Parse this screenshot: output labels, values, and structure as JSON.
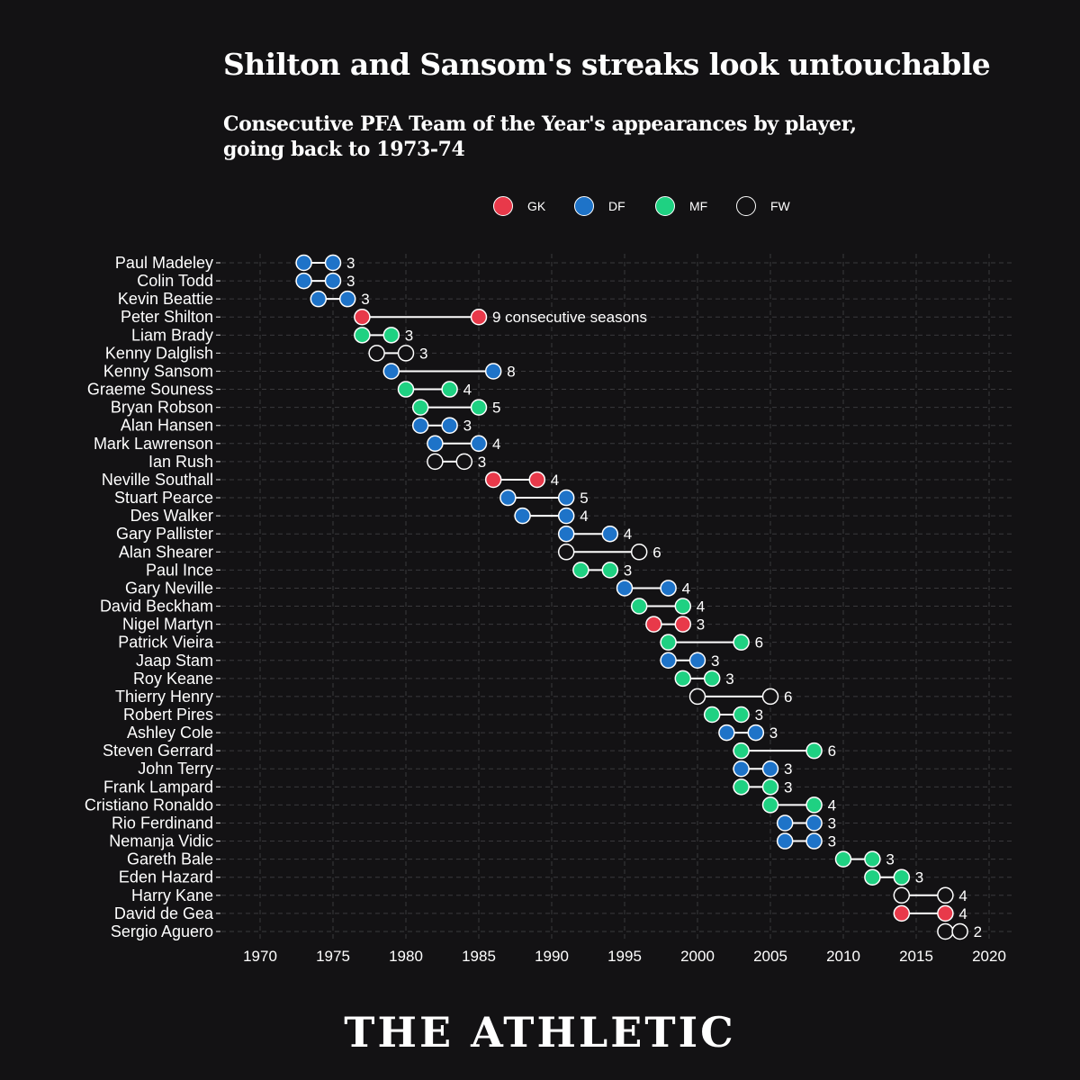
{
  "header": {
    "title": "Shilton and Sansom's streaks look untouchable",
    "subtitle": "Consecutive PFA Team of the Year's appearances by player, going back to 1973-74"
  },
  "legend": [
    {
      "label": "GK",
      "color": "#e8394a"
    },
    {
      "label": "DF",
      "color": "#1e73c8"
    },
    {
      "label": "MF",
      "color": "#1fd182"
    },
    {
      "label": "FW",
      "color": "#131214"
    }
  ],
  "footer": {
    "brand": "THE ATHLETIC"
  },
  "chart_data": {
    "type": "dumbbell",
    "xlim": [
      1968,
      2021
    ],
    "x_ticks": [
      1970,
      1975,
      1980,
      1985,
      1990,
      1995,
      2000,
      2005,
      2010,
      2015,
      2020
    ],
    "grid": true,
    "legend_position": "top",
    "position_colors": {
      "GK": "#e8394a",
      "DF": "#1e73c8",
      "MF": "#1fd182",
      "FW": "#131214"
    },
    "players": [
      {
        "name": "Paul Madeley",
        "start": 1973,
        "end": 1975,
        "position": "DF",
        "label": "3"
      },
      {
        "name": "Colin Todd",
        "start": 1973,
        "end": 1975,
        "position": "DF",
        "label": "3"
      },
      {
        "name": "Kevin Beattie",
        "start": 1974,
        "end": 1976,
        "position": "DF",
        "label": "3"
      },
      {
        "name": "Peter Shilton",
        "start": 1977,
        "end": 1985,
        "position": "GK",
        "label": "9 consecutive seasons"
      },
      {
        "name": "Liam Brady",
        "start": 1977,
        "end": 1979,
        "position": "MF",
        "label": "3"
      },
      {
        "name": "Kenny Dalglish",
        "start": 1978,
        "end": 1980,
        "position": "FW",
        "label": "3"
      },
      {
        "name": "Kenny Sansom",
        "start": 1979,
        "end": 1986,
        "position": "DF",
        "label": "8"
      },
      {
        "name": "Graeme Souness",
        "start": 1980,
        "end": 1983,
        "position": "MF",
        "label": "4"
      },
      {
        "name": "Bryan Robson",
        "start": 1981,
        "end": 1985,
        "position": "MF",
        "label": "5"
      },
      {
        "name": "Alan Hansen",
        "start": 1981,
        "end": 1983,
        "position": "DF",
        "label": "3"
      },
      {
        "name": "Mark Lawrenson",
        "start": 1982,
        "end": 1985,
        "position": "DF",
        "label": "4"
      },
      {
        "name": "Ian Rush",
        "start": 1982,
        "end": 1984,
        "position": "FW",
        "label": "3"
      },
      {
        "name": "Neville Southall",
        "start": 1986,
        "end": 1989,
        "position": "GK",
        "label": "4"
      },
      {
        "name": "Stuart Pearce",
        "start": 1987,
        "end": 1991,
        "position": "DF",
        "label": "5"
      },
      {
        "name": "Des Walker",
        "start": 1988,
        "end": 1991,
        "position": "DF",
        "label": "4"
      },
      {
        "name": "Gary Pallister",
        "start": 1991,
        "end": 1994,
        "position": "DF",
        "label": "4"
      },
      {
        "name": "Alan Shearer",
        "start": 1991,
        "end": 1996,
        "position": "FW",
        "label": "6"
      },
      {
        "name": "Paul Ince",
        "start": 1992,
        "end": 1994,
        "position": "MF",
        "label": "3"
      },
      {
        "name": "Gary Neville",
        "start": 1995,
        "end": 1998,
        "position": "DF",
        "label": "4"
      },
      {
        "name": "David Beckham",
        "start": 1996,
        "end": 1999,
        "position": "MF",
        "label": "4"
      },
      {
        "name": "Nigel Martyn",
        "start": 1997,
        "end": 1999,
        "position": "GK",
        "label": "3"
      },
      {
        "name": "Patrick Vieira",
        "start": 1998,
        "end": 2003,
        "position": "MF",
        "label": "6"
      },
      {
        "name": "Jaap Stam",
        "start": 1998,
        "end": 2000,
        "position": "DF",
        "label": "3"
      },
      {
        "name": "Roy Keane",
        "start": 1999,
        "end": 2001,
        "position": "MF",
        "label": "3"
      },
      {
        "name": "Thierry Henry",
        "start": 2000,
        "end": 2005,
        "position": "FW",
        "label": "6"
      },
      {
        "name": "Robert Pires",
        "start": 2001,
        "end": 2003,
        "position": "MF",
        "label": "3"
      },
      {
        "name": "Ashley Cole",
        "start": 2002,
        "end": 2004,
        "position": "DF",
        "label": "3"
      },
      {
        "name": "Steven Gerrard",
        "start": 2003,
        "end": 2008,
        "position": "MF",
        "label": "6"
      },
      {
        "name": "John Terry",
        "start": 2003,
        "end": 2005,
        "position": "DF",
        "label": "3"
      },
      {
        "name": "Frank Lampard",
        "start": 2003,
        "end": 2005,
        "position": "MF",
        "label": "3"
      },
      {
        "name": "Cristiano Ronaldo",
        "start": 2005,
        "end": 2008,
        "position": "MF",
        "label": "4"
      },
      {
        "name": "Rio Ferdinand",
        "start": 2006,
        "end": 2008,
        "position": "DF",
        "label": "3"
      },
      {
        "name": "Nemanja Vidic",
        "start": 2006,
        "end": 2008,
        "position": "DF",
        "label": "3"
      },
      {
        "name": "Gareth Bale",
        "start": 2010,
        "end": 2012,
        "position": "MF",
        "label": "3"
      },
      {
        "name": "Eden Hazard",
        "start": 2012,
        "end": 2014,
        "position": "MF",
        "label": "3"
      },
      {
        "name": "Harry Kane",
        "start": 2014,
        "end": 2017,
        "position": "FW",
        "label": "4"
      },
      {
        "name": "David de Gea",
        "start": 2014,
        "end": 2017,
        "position": "GK",
        "label": "4"
      },
      {
        "name": "Sergio Aguero",
        "start": 2017,
        "end": 2018,
        "position": "FW",
        "label": "2"
      }
    ]
  }
}
